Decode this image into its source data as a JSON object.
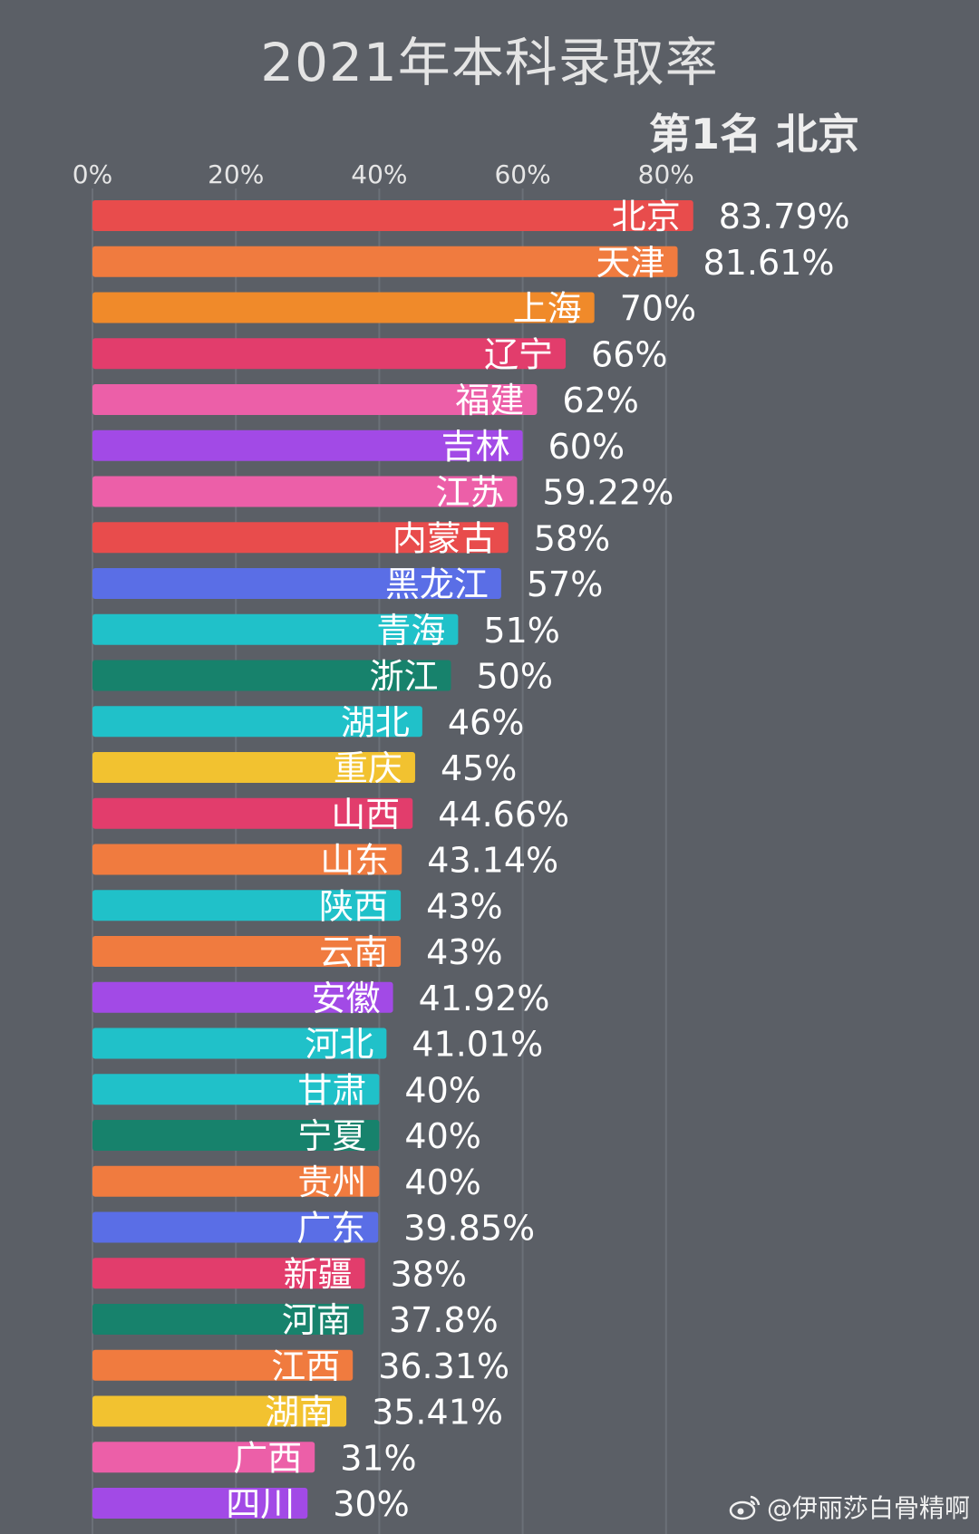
{
  "header": {
    "title": "2021年本科录取率",
    "rank_label": "第1名 北京"
  },
  "watermark": {
    "text": "@伊丽莎白骨精啊",
    "icon": "weibo-icon"
  },
  "chart_data": {
    "type": "bar",
    "orientation": "horizontal",
    "title": "2021年本科录取率",
    "xlabel": "",
    "ylabel": "",
    "xlim": [
      0,
      100
    ],
    "x_ticks": [
      0,
      20,
      40,
      60,
      80
    ],
    "x_tick_labels": [
      "0%",
      "20%",
      "40%",
      "60%",
      "80%"
    ],
    "grid": true,
    "legend": "none",
    "categories": [
      "北京",
      "天津",
      "上海",
      "辽宁",
      "福建",
      "吉林",
      "江苏",
      "内蒙古",
      "黑龙江",
      "青海",
      "浙江",
      "湖北",
      "重庆",
      "山西",
      "山东",
      "陕西",
      "云南",
      "安徽",
      "河北",
      "甘肃",
      "宁夏",
      "贵州",
      "广东",
      "新疆",
      "河南",
      "江西",
      "湖南",
      "广西",
      "四川"
    ],
    "values": [
      83.79,
      81.61,
      70,
      66,
      62,
      60,
      59.22,
      58,
      57,
      51,
      50,
      46,
      45,
      44.66,
      43.14,
      43,
      43,
      41.92,
      41.01,
      40,
      40,
      40,
      39.85,
      38,
      37.8,
      36.31,
      35.41,
      31,
      30
    ],
    "value_labels": [
      "83.79%",
      "81.61%",
      "70%",
      "66%",
      "62%",
      "60%",
      "59.22%",
      "58%",
      "57%",
      "51%",
      "50%",
      "46%",
      "45%",
      "44.66%",
      "43.14%",
      "43%",
      "43%",
      "41.92%",
      "41.01%",
      "40%",
      "40%",
      "40%",
      "39.85%",
      "38%",
      "37.8%",
      "36.31%",
      "35.41%",
      "31%",
      "30%"
    ],
    "colors": [
      "#e84c4c",
      "#f07b3f",
      "#f08a2a",
      "#e23d6c",
      "#ec5fa8",
      "#a24ae6",
      "#ec5fa8",
      "#e84c4c",
      "#5a6ee6",
      "#20c1c9",
      "#17826c",
      "#20c1c9",
      "#f2c230",
      "#e23d6c",
      "#f07b3f",
      "#20c1c9",
      "#f07b3f",
      "#a24ae6",
      "#20c1c9",
      "#20c1c9",
      "#17826c",
      "#f07b3f",
      "#5a6ee6",
      "#e23d6c",
      "#17826c",
      "#f07b3f",
      "#f2c230",
      "#ec5fa8",
      "#a24ae6"
    ]
  }
}
